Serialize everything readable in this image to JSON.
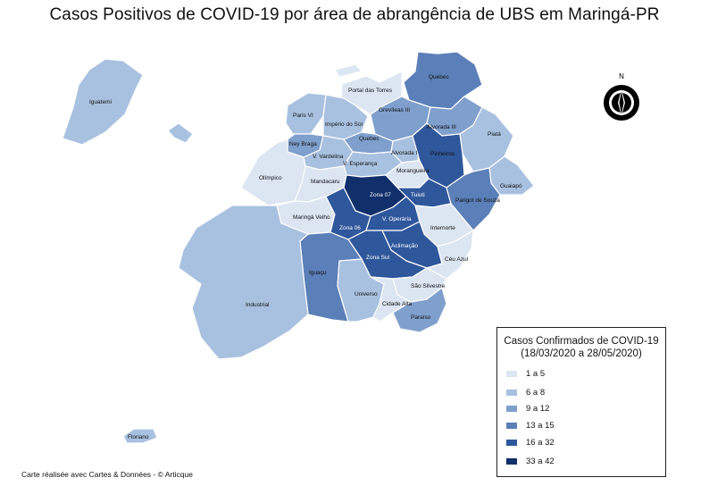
{
  "title": "Casos Positivos de COVID-19 por área  de abrangência de UBS em Maringá-PR",
  "colors": {
    "c1": "#dce5f2",
    "c2": "#a9c1e0",
    "c3": "#7f9fcd",
    "c4": "#5b7fb8",
    "c5": "#2e579c",
    "c6": "#102f6b"
  },
  "compass": {
    "north_label": "N",
    "icon": "compass-rose-icon"
  },
  "regions": [
    {
      "key": "iguatemi",
      "name": "Iguatemi",
      "cls": "c2"
    },
    {
      "key": "portal_das_torres",
      "name": "Portal das Torres",
      "cls": "c1"
    },
    {
      "key": "quebec_n",
      "name": "Quebec",
      "cls": "c4"
    },
    {
      "key": "parque_vi",
      "name": "Paris VI",
      "cls": "c2"
    },
    {
      "key": "imperio",
      "name": "Império do Sol",
      "cls": "c2"
    },
    {
      "key": "grevileas",
      "name": "Grevíleas III",
      "cls": "c3"
    },
    {
      "key": "alvorada3",
      "name": "Alvorada III",
      "cls": "c3"
    },
    {
      "key": "piata",
      "name": "Piatá",
      "cls": "c2"
    },
    {
      "key": "ney_braga",
      "name": "Ney Braga",
      "cls": "c3"
    },
    {
      "key": "quebec",
      "name": "Quebec",
      "cls": "c3"
    },
    {
      "key": "alvorada1",
      "name": "Alvorada I",
      "cls": "c2"
    },
    {
      "key": "pinheiros",
      "name": "Pinheiros",
      "cls": "c5"
    },
    {
      "key": "vardelina",
      "name": "V. Vardelina",
      "cls": "c2"
    },
    {
      "key": "esperanca",
      "name": "V. Esperança",
      "cls": "c2"
    },
    {
      "key": "olimpico",
      "name": "Olímpico",
      "cls": "c1"
    },
    {
      "key": "morangueira",
      "name": "Morangueira",
      "cls": "c1"
    },
    {
      "key": "guaiapo",
      "name": "Guaiapó",
      "cls": "c2"
    },
    {
      "key": "mandacaru",
      "name": "Mandacaru",
      "cls": "c1"
    },
    {
      "key": "zona07",
      "name": "Zona 07",
      "cls": "c6"
    },
    {
      "key": "tuiuti",
      "name": "Tuiuti",
      "cls": "c5"
    },
    {
      "key": "parigot",
      "name": "Parigot de Souza",
      "cls": "c4"
    },
    {
      "key": "maringa_velho",
      "name": "Maringá Velho",
      "cls": "c1"
    },
    {
      "key": "zona06",
      "name": "Zona 06",
      "cls": "c5"
    },
    {
      "key": "operaria",
      "name": "V. Operária",
      "cls": "c5"
    },
    {
      "key": "internorte",
      "name": "Internorte",
      "cls": "c1"
    },
    {
      "key": "aclimacao",
      "name": "Aclimação",
      "cls": "c5"
    },
    {
      "key": "zona_sul",
      "name": "Zona Sul",
      "cls": "c5"
    },
    {
      "key": "ceu_azul",
      "name": "Céu Azul",
      "cls": "c1"
    },
    {
      "key": "iguacu",
      "name": "Iguaçu",
      "cls": "c4"
    },
    {
      "key": "industrial",
      "name": "Industrial",
      "cls": "c2"
    },
    {
      "key": "sao_silvestre",
      "name": "São Silvestre",
      "cls": "c1"
    },
    {
      "key": "universo",
      "name": "Universo",
      "cls": "c2"
    },
    {
      "key": "cidade_alta",
      "name": "Cidade Alta",
      "cls": "c1"
    },
    {
      "key": "paraiso",
      "name": "Paraíso",
      "cls": "c3"
    },
    {
      "key": "floriano",
      "name": "Floriano",
      "cls": "c2"
    }
  ],
  "legend": {
    "title_line1": "Casos Confirmados de COVID-19",
    "title_line2": "(18/03/2020 a 28/05/2020)",
    "items": [
      {
        "label": "1 a 5",
        "color": "#dce5f2"
      },
      {
        "label": "6 a 8",
        "color": "#a9c1e0"
      },
      {
        "label": "9 a 12",
        "color": "#7f9fcd"
      },
      {
        "label": "13 a 15",
        "color": "#5b7fb8"
      },
      {
        "label": "16 a 32",
        "color": "#2e579c"
      },
      {
        "label": "33 a 42",
        "color": "#102f6b"
      }
    ]
  },
  "credit": "Carte réalisée avec Cartes & Données - © Articque"
}
